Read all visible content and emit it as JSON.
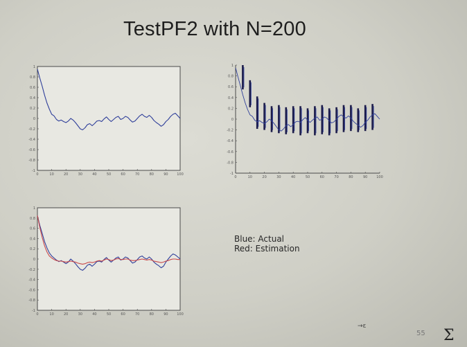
{
  "slide": {
    "title": "TestPF2 with N=200",
    "legend": {
      "blue": "Blue: Actual",
      "red": "Red: Estimation"
    },
    "slide_number": "55",
    "scribble": "→ε",
    "corner_mark": "Σ"
  },
  "colors": {
    "actual": "#2f3f9a",
    "estimate": "#c8484a",
    "axis": "#4a4a4a",
    "particles": "#1c1c4a"
  },
  "chart_data": [
    {
      "type": "line",
      "title": "",
      "xlim": [
        0,
        100
      ],
      "ylim": [
        -1,
        1
      ],
      "x_ticks": [
        "0",
        "10",
        "20",
        "30",
        "40",
        "50",
        "60",
        "70",
        "80",
        "90",
        "100"
      ],
      "y_ticks": [
        "1",
        "0.8",
        "0.6",
        "0.4",
        "0.2",
        "0",
        "-0.2",
        "-0.4",
        "-0.6",
        "-0.8",
        "-1"
      ],
      "series": [
        {
          "values": [
            0.95,
            0.78,
            0.62,
            0.45,
            0.3,
            0.18,
            0.08,
            0.05,
            -0.02,
            -0.05,
            -0.03,
            -0.06,
            -0.08,
            -0.05,
            0.0,
            -0.03,
            -0.08,
            -0.14,
            -0.2,
            -0.22,
            -0.18,
            -0.12,
            -0.1,
            -0.14,
            -0.1,
            -0.05,
            -0.04,
            -0.06,
            -0.01,
            0.03,
            -0.02,
            -0.06,
            -0.02,
            0.02,
            0.04,
            -0.02,
            0.0,
            0.04,
            0.02,
            -0.03,
            -0.07,
            -0.05,
            0.0,
            0.05,
            0.08,
            0.04,
            0.02,
            0.06,
            0.02,
            -0.04,
            -0.08,
            -0.11,
            -0.15,
            -0.12,
            -0.06,
            -0.02,
            0.04,
            0.08,
            0.1,
            0.05,
            0.0
          ]
        }
      ]
    },
    {
      "type": "scatter",
      "title": "",
      "xlim": [
        0,
        100
      ],
      "ylim": [
        -1,
        1
      ],
      "x_ticks": [
        "0",
        "10",
        "20",
        "30",
        "40",
        "50",
        "60",
        "70",
        "80",
        "90",
        "100"
      ],
      "y_ticks": [
        "1",
        "0.8",
        "0.6",
        "0.4",
        "0.2",
        "0",
        "-0.2",
        "-0.4",
        "-0.6",
        "-0.8",
        "-1"
      ],
      "particle_columns": [
        {
          "x": 5,
          "low": 0.55,
          "high": 1.0
        },
        {
          "x": 10,
          "low": 0.22,
          "high": 0.72
        },
        {
          "x": 15,
          "low": -0.18,
          "high": 0.42
        },
        {
          "x": 20,
          "low": -0.2,
          "high": 0.3
        },
        {
          "x": 25,
          "low": -0.24,
          "high": 0.24
        },
        {
          "x": 30,
          "low": -0.26,
          "high": 0.26
        },
        {
          "x": 35,
          "low": -0.28,
          "high": 0.22
        },
        {
          "x": 40,
          "low": -0.26,
          "high": 0.24
        },
        {
          "x": 45,
          "low": -0.3,
          "high": 0.24
        },
        {
          "x": 50,
          "low": -0.26,
          "high": 0.2
        },
        {
          "x": 55,
          "low": -0.3,
          "high": 0.24
        },
        {
          "x": 60,
          "low": -0.28,
          "high": 0.26
        },
        {
          "x": 65,
          "low": -0.3,
          "high": 0.2
        },
        {
          "x": 70,
          "low": -0.26,
          "high": 0.22
        },
        {
          "x": 75,
          "low": -0.24,
          "high": 0.26
        },
        {
          "x": 80,
          "low": -0.22,
          "high": 0.26
        },
        {
          "x": 85,
          "low": -0.24,
          "high": 0.2
        },
        {
          "x": 90,
          "low": -0.22,
          "high": 0.26
        },
        {
          "x": 95,
          "low": -0.2,
          "high": 0.28
        }
      ],
      "series": [
        {
          "values": [
            0.95,
            0.78,
            0.62,
            0.45,
            0.3,
            0.18,
            0.08,
            0.05,
            -0.02,
            -0.05,
            -0.03,
            -0.06,
            -0.08,
            -0.05,
            0.0,
            -0.03,
            -0.08,
            -0.14,
            -0.2,
            -0.22,
            -0.18,
            -0.12,
            -0.1,
            -0.14,
            -0.1,
            -0.05,
            -0.04,
            -0.06,
            -0.01,
            0.03,
            -0.02,
            -0.06,
            -0.02,
            0.02,
            0.04,
            -0.02,
            0.0,
            0.04,
            0.02,
            -0.03,
            -0.07,
            -0.05,
            0.0,
            0.05,
            0.08,
            0.04,
            0.02,
            0.06,
            0.02,
            -0.04,
            -0.08,
            -0.11,
            -0.15,
            -0.12,
            -0.06,
            -0.02,
            0.04,
            0.08,
            0.1,
            0.05,
            0.0
          ]
        }
      ]
    },
    {
      "type": "line",
      "title": "",
      "xlim": [
        0,
        100
      ],
      "ylim": [
        -1,
        1
      ],
      "x_ticks": [
        "0",
        "10",
        "20",
        "30",
        "40",
        "50",
        "60",
        "70",
        "80",
        "90",
        "100"
      ],
      "y_ticks": [
        "1",
        "0.8",
        "0.6",
        "0.4",
        "0.2",
        "0",
        "-0.2",
        "-0.4",
        "-0.6",
        "-0.8",
        "-1"
      ],
      "series": [
        {
          "values": [
            0.85,
            0.66,
            0.5,
            0.34,
            0.22,
            0.12,
            0.06,
            0.02,
            -0.02,
            -0.05,
            -0.03,
            -0.06,
            -0.09,
            -0.06,
            0.0,
            -0.04,
            -0.09,
            -0.15,
            -0.2,
            -0.22,
            -0.18,
            -0.12,
            -0.1,
            -0.14,
            -0.1,
            -0.05,
            -0.04,
            -0.06,
            -0.01,
            0.03,
            -0.02,
            -0.06,
            -0.02,
            0.02,
            0.04,
            -0.02,
            0.0,
            0.04,
            0.02,
            -0.03,
            -0.08,
            -0.06,
            -0.01,
            0.04,
            0.06,
            0.02,
            0.0,
            0.04,
            0.0,
            -0.06,
            -0.1,
            -0.13,
            -0.17,
            -0.14,
            -0.06,
            0.0,
            0.06,
            0.1,
            0.08,
            0.04,
            0.0
          ]
        },
        {
          "values": [
            0.85,
            0.62,
            0.42,
            0.26,
            0.14,
            0.06,
            0.02,
            -0.01,
            -0.03,
            -0.04,
            -0.04,
            -0.05,
            -0.06,
            -0.05,
            -0.04,
            -0.05,
            -0.06,
            -0.08,
            -0.09,
            -0.1,
            -0.09,
            -0.07,
            -0.06,
            -0.07,
            -0.06,
            -0.04,
            -0.03,
            -0.04,
            -0.02,
            0.0,
            -0.01,
            -0.03,
            -0.02,
            0.0,
            0.01,
            -0.01,
            -0.01,
            0.0,
            0.0,
            -0.02,
            -0.03,
            -0.03,
            -0.02,
            -0.01,
            0.0,
            -0.01,
            -0.02,
            -0.01,
            -0.02,
            -0.04,
            -0.05,
            -0.06,
            -0.07,
            -0.06,
            -0.04,
            -0.03,
            -0.01,
            0.0,
            0.0,
            -0.01,
            -0.01
          ]
        }
      ]
    }
  ]
}
